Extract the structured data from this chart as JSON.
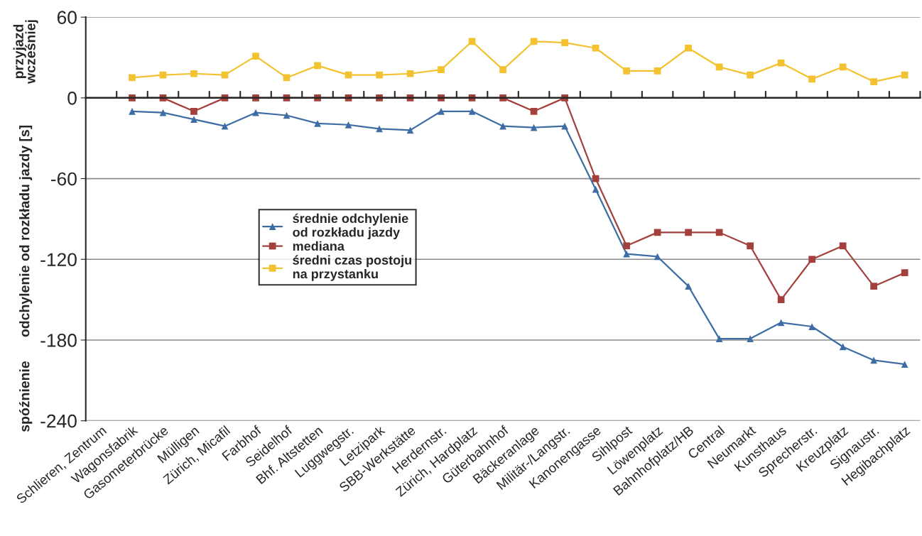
{
  "chart_data": {
    "type": "line",
    "ylabel": "odchylenie od rozkładu jazdy [s]",
    "annotations": [
      "przyjazd\nwcześniej",
      "spóźnienie"
    ],
    "categories": [
      "Schlieren, Zentrum",
      "Wagonsfabrik",
      "Gasometerbrücke",
      "Mülligen",
      "Zürich, Micafil",
      "Farbhof",
      "Seidelhof",
      "Bhf. Altstetten",
      "Luggwegstr.",
      "Letzipark",
      "SBB-Werkstätte",
      "Herdernstr.",
      "Zürich, Hardplatz",
      "Güterbahnhof",
      "Bäckeranlage",
      "Militär-/Langstr.",
      "Kanonengasse",
      "Sihlpost",
      "Löwenplatz",
      "Bahnhofplatz/HB",
      "Central",
      "Neumarkt",
      "Kunsthaus",
      "Sprecherstr.",
      "Kreuzplatz",
      "Signaustr.",
      "Hegibachplatz"
    ],
    "series": [
      {
        "name": "średnie odchylenie\nod rozkładu jazdy",
        "color": "#3d6da3",
        "marker": "triangle",
        "values": [
          null,
          -10,
          -11,
          -16,
          -21,
          -11,
          -13,
          -19,
          -20,
          -23,
          -24,
          -10,
          -10,
          -21,
          -22,
          -21,
          -68,
          -116,
          -118,
          -140,
          -179,
          -179,
          -167,
          -170,
          -185,
          -195,
          -198
        ]
      },
      {
        "name": "mediana",
        "color": "#a3403c",
        "marker": "square",
        "values": [
          null,
          0,
          0,
          -10,
          0,
          0,
          0,
          0,
          0,
          0,
          0,
          0,
          0,
          0,
          -10,
          0,
          -60,
          -110,
          -100,
          -100,
          -100,
          -110,
          -150,
          -120,
          -110,
          -140,
          -130
        ]
      },
      {
        "name": "średni czas postoju\nna przystanku",
        "color": "#f2c230",
        "marker": "square",
        "values": [
          null,
          15,
          17,
          18,
          17,
          31,
          15,
          24,
          17,
          17,
          18,
          21,
          42,
          21,
          42,
          41,
          37,
          20,
          20,
          37,
          23,
          17,
          26,
          14,
          23,
          12,
          17
        ]
      }
    ],
    "ylim": [
      -240,
      60
    ],
    "yticks": [
      -240,
      -180,
      -120,
      -60,
      0,
      60
    ],
    "grid": "y",
    "legend": "center left",
    "line_style": "solid"
  }
}
